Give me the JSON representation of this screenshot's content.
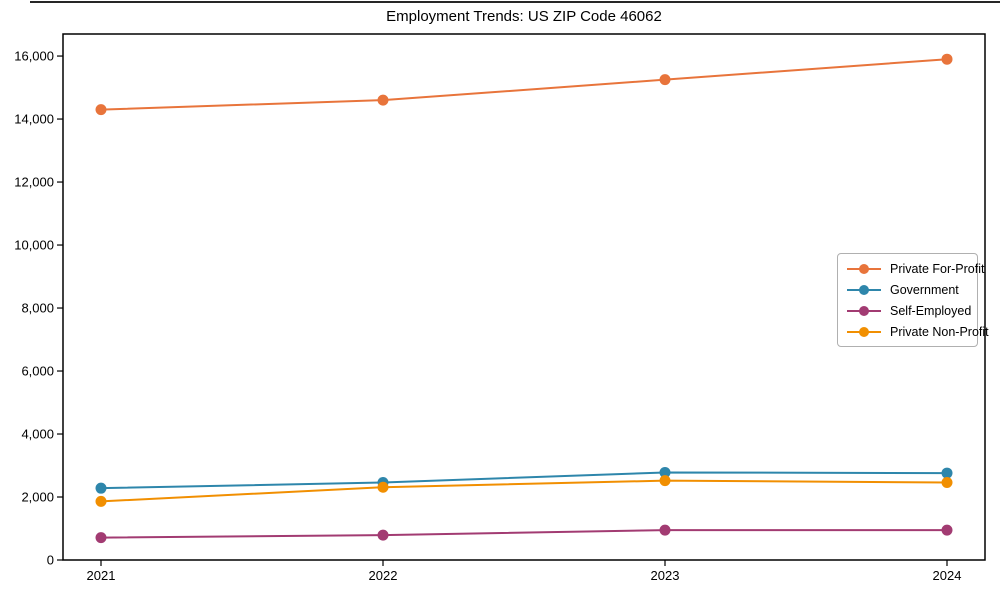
{
  "figure": {
    "background": "#ffffff",
    "axis_color": "#000000"
  },
  "chart_data": {
    "type": "line",
    "title": "Employment Trends: US ZIP Code 46062",
    "x": [
      "2021",
      "2022",
      "2023",
      "2024"
    ],
    "series": [
      {
        "name": "Private For-Profit",
        "color": "#E8743B",
        "values": [
          14300,
          14600,
          15250,
          15900
        ]
      },
      {
        "name": "Government",
        "color": "#2E86AB",
        "values": [
          2280,
          2460,
          2780,
          2760
        ]
      },
      {
        "name": "Self-Employed",
        "color": "#A23B72",
        "values": [
          710,
          790,
          950,
          950
        ]
      },
      {
        "name": "Private Non-Profit",
        "color": "#F18F01",
        "values": [
          1860,
          2310,
          2520,
          2460
        ]
      }
    ],
    "xlabel": "",
    "ylabel": "",
    "ylim": [
      0,
      16700
    ],
    "yticks": [
      0,
      2000,
      4000,
      6000,
      8000,
      10000,
      12000,
      14000,
      16000
    ],
    "grid": false,
    "legend_position": "center-right",
    "marker": "circle"
  }
}
